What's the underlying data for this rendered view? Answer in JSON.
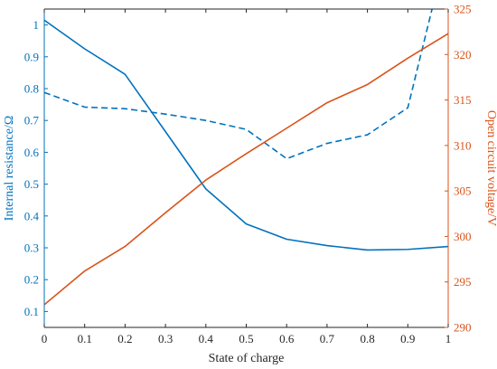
{
  "chart_data": {
    "type": "line",
    "xlabel": "State of charge",
    "ylabel_left": "Internal resistance/Ω",
    "ylabel_right": "Open circuit voltage/V",
    "x": [
      0,
      0.1,
      0.2,
      0.3,
      0.4,
      0.5,
      0.6,
      0.7,
      0.8,
      0.9,
      1.0
    ],
    "xlim": [
      0,
      1
    ],
    "y_left_lim": [
      0.05,
      1.05
    ],
    "y_right_lim": [
      290,
      325
    ],
    "x_ticks": [
      "0",
      "0.1",
      "0.2",
      "0.3",
      "0.4",
      "0.5",
      "0.6",
      "0.7",
      "0.8",
      "0.9",
      "1"
    ],
    "y_left_ticks": [
      {
        "value": 0.1,
        "label": "0.1"
      },
      {
        "value": 0.2,
        "label": "0.2"
      },
      {
        "value": 0.3,
        "label": "0.3"
      },
      {
        "value": 0.4,
        "label": "0.4"
      },
      {
        "value": 0.5,
        "label": "0.5"
      },
      {
        "value": 0.6,
        "label": "0.6"
      },
      {
        "value": 0.7,
        "label": "0.7"
      },
      {
        "value": 0.8,
        "label": "0.8"
      },
      {
        "value": 0.9,
        "label": "0.9"
      },
      {
        "value": 1.0,
        "label": "1"
      }
    ],
    "y_right_ticks": [
      {
        "value": 290,
        "label": "290"
      },
      {
        "value": 295,
        "label": "295"
      },
      {
        "value": 300,
        "label": "300"
      },
      {
        "value": 305,
        "label": "305"
      },
      {
        "value": 310,
        "label": "310"
      },
      {
        "value": 315,
        "label": "315"
      },
      {
        "value": 320,
        "label": "320"
      },
      {
        "value": 325,
        "label": "325"
      }
    ],
    "grid": false,
    "series": [
      {
        "axis": "left",
        "style": "solid",
        "color": "#0072BD",
        "x": [
          0,
          0.1,
          0.2,
          0.3,
          0.4,
          0.5,
          0.6,
          0.7,
          0.8,
          0.9,
          1.0
        ],
        "values": [
          1.015,
          0.925,
          0.845,
          0.665,
          0.485,
          0.375,
          0.327,
          0.307,
          0.293,
          0.295,
          0.304
        ]
      },
      {
        "axis": "left",
        "style": "dashed",
        "color": "#0072BD",
        "x": [
          0,
          0.1,
          0.2,
          0.3,
          0.4,
          0.5,
          0.6,
          0.7,
          0.8,
          0.9,
          0.96
        ],
        "values": [
          0.788,
          0.742,
          0.737,
          0.72,
          0.7,
          0.672,
          0.58,
          0.628,
          0.655,
          0.74,
          1.05
        ]
      },
      {
        "axis": "right",
        "style": "solid",
        "color": "#D95319",
        "x": [
          0,
          0.1,
          0.2,
          0.3,
          0.4,
          0.5,
          0.6,
          0.7,
          0.8,
          0.9,
          1.0
        ],
        "values": [
          292.5,
          296.2,
          298.9,
          302.6,
          306.2,
          309.1,
          311.9,
          314.7,
          316.7,
          319.6,
          322.3
        ]
      }
    ],
    "colors": {
      "left_axis": "#0072BD",
      "right_axis": "#D95319",
      "bottom_axis": "#262626"
    }
  }
}
